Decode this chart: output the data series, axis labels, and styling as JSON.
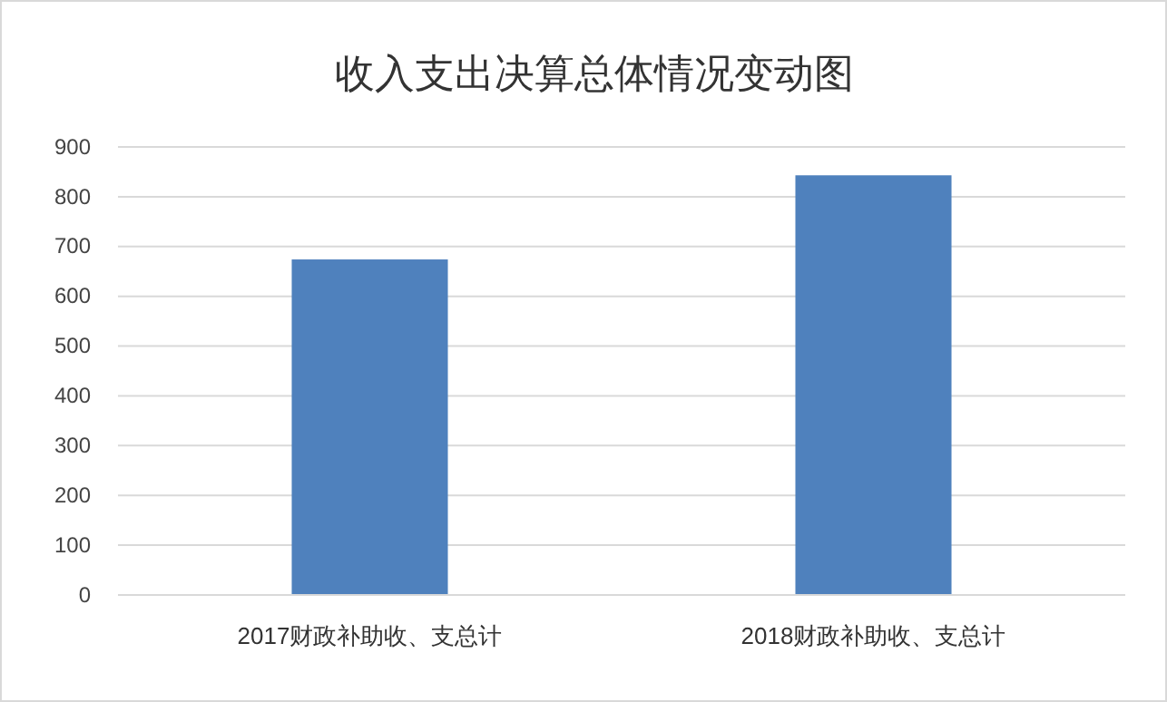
{
  "chart_data": {
    "type": "bar",
    "title": "收入支出决算总体情况变动图",
    "categories": [
      "2017财政补助收、支总计",
      "2018财政补助收、支总计"
    ],
    "values": [
      674,
      843
    ],
    "color": "#4f81bd",
    "ylim": [
      0,
      900
    ],
    "yticks": [
      0,
      100,
      200,
      300,
      400,
      500,
      600,
      700,
      800,
      900
    ],
    "grid": "y"
  }
}
